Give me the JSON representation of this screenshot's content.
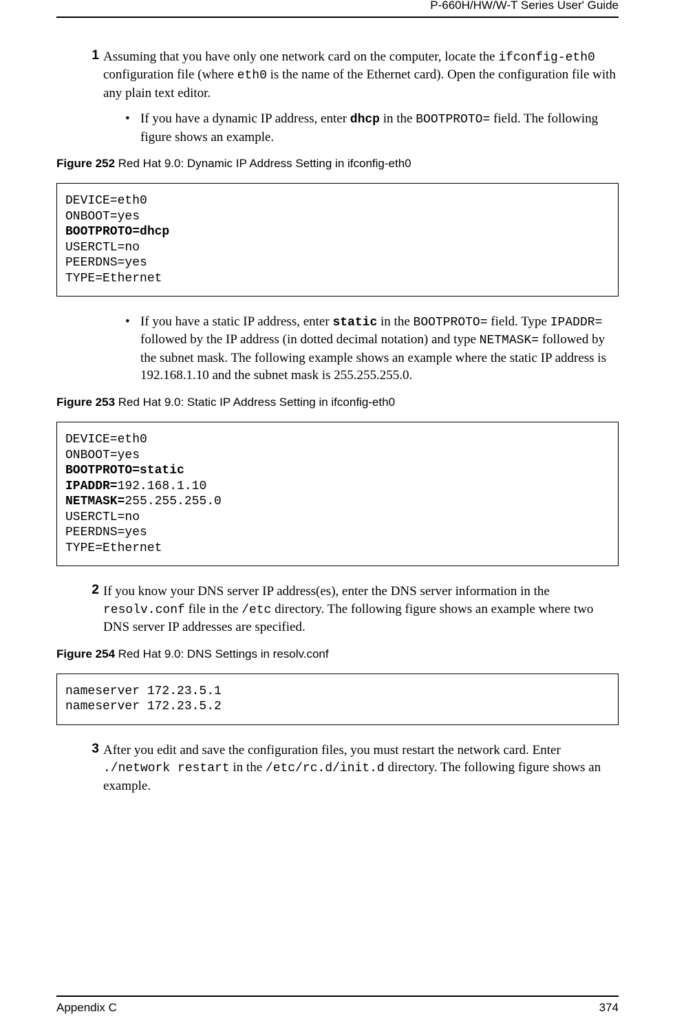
{
  "header": {
    "guide_title": "P-660H/HW/W-T Series User' Guide"
  },
  "footer": {
    "section": "Appendix C",
    "page_number": "374"
  },
  "steps": {
    "s1": {
      "num": "1",
      "t1": "Assuming that you have only one network card on the computer, locate the ",
      "c1": "ifconfig-eth0",
      "t2": " configuration file (where ",
      "c2": "eth0",
      "t3": " is the name of the Ethernet card). Open the configuration file with any plain text editor."
    },
    "b1": {
      "t1": "If you have a dynamic IP address, enter ",
      "c1": "dhcp",
      "t2": " in the ",
      "c2": "BOOTPROTO=",
      "t3": " field.  The following figure shows an example."
    },
    "b2": {
      "t1": "If you have a static IP address, enter ",
      "c1": "static",
      "t2": " in the ",
      "c2": "BOOTPROTO=",
      "t3": " field. Type ",
      "c3": "IPADDR=",
      "t4": " followed by the IP address (in dotted decimal notation) and type ",
      "c4": "NETMASK=",
      "t5": " followed by the subnet mask. The following example shows an example where the static IP address is 192.168.1.10 and the subnet mask is 255.255.255.0."
    },
    "s2": {
      "num": "2",
      "t1": "If you know your DNS server IP address(es), enter the DNS server information in the ",
      "c1": "resolv.conf",
      "t2": " file in the ",
      "c2": "/etc",
      "t3": " directory.  The following figure shows an example where two DNS server IP addresses are specified."
    },
    "s3": {
      "num": "3",
      "t1": "After you edit and save the configuration files, you must restart the network card. Enter ",
      "c1": "./network restart",
      "t2": " in the ",
      "c2": "/etc/rc.d/init.d",
      "t3": "  directory.  The following figure shows an example."
    }
  },
  "figures": {
    "f252": {
      "label": "Figure 252",
      "caption": "   Red Hat 9.0: Dynamic IP Address Setting in ifconfig-eth0"
    },
    "f253": {
      "label": "Figure 253",
      "caption": "   Red Hat 9.0: Static IP Address Setting in ifconfig-eth0"
    },
    "f254": {
      "label": "Figure 254",
      "caption": "   Red Hat 9.0: DNS Settings in resolv.conf"
    }
  },
  "code": {
    "box1": {
      "l1": "DEVICE=eth0",
      "l2": "ONBOOT=yes",
      "l3": "BOOTPROTO=dhcp",
      "l4": "USERCTL=no",
      "l5": "PEERDNS=yes",
      "l6": "TYPE=Ethernet"
    },
    "box2": {
      "l1": "DEVICE=eth0",
      "l2": "ONBOOT=yes",
      "l3": "BOOTPROTO=static",
      "l4a": "IPADDR=",
      "l4b": "192.168.1.10",
      "l5a": "NETMASK=",
      "l5b": "255.255.255.0",
      "l6": "USERCTL=no",
      "l7": "PEERDNS=yes",
      "l8": "TYPE=Ethernet"
    },
    "box3": {
      "l1": "nameserver 172.23.5.1",
      "l2": "nameserver 172.23.5.2"
    }
  }
}
